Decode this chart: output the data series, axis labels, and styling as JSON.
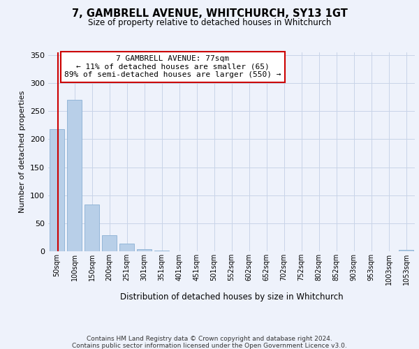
{
  "title": "7, GAMBRELL AVENUE, WHITCHURCH, SY13 1GT",
  "subtitle": "Size of property relative to detached houses in Whitchurch",
  "xlabel": "Distribution of detached houses by size in Whitchurch",
  "ylabel": "Number of detached properties",
  "bar_labels": [
    "50sqm",
    "100sqm",
    "150sqm",
    "200sqm",
    "251sqm",
    "301sqm",
    "351sqm",
    "401sqm",
    "451sqm",
    "501sqm",
    "552sqm",
    "602sqm",
    "652sqm",
    "702sqm",
    "752sqm",
    "802sqm",
    "852sqm",
    "903sqm",
    "953sqm",
    "1003sqm",
    "1053sqm"
  ],
  "bar_values": [
    218,
    270,
    84,
    29,
    14,
    4,
    1,
    0,
    0,
    0,
    0,
    0,
    0,
    0,
    0,
    0,
    0,
    0,
    0,
    0,
    2
  ],
  "bar_color": "#b8cfe8",
  "bar_edge_color": "#8ab0d4",
  "annotation_title": "7 GAMBRELL AVENUE: 77sqm",
  "annotation_line1": "← 11% of detached houses are smaller (65)",
  "annotation_line2": "89% of semi-detached houses are larger (550) →",
  "annotation_box_color": "#ffffff",
  "annotation_box_edge": "#cc0000",
  "vline_color": "#cc0000",
  "ylim": [
    0,
    355
  ],
  "yticks": [
    0,
    50,
    100,
    150,
    200,
    250,
    300,
    350
  ],
  "grid_color": "#c8d4e8",
  "bg_color": "#eef2fb",
  "footer1": "Contains HM Land Registry data © Crown copyright and database right 2024.",
  "footer2": "Contains public sector information licensed under the Open Government Licence v3.0."
}
